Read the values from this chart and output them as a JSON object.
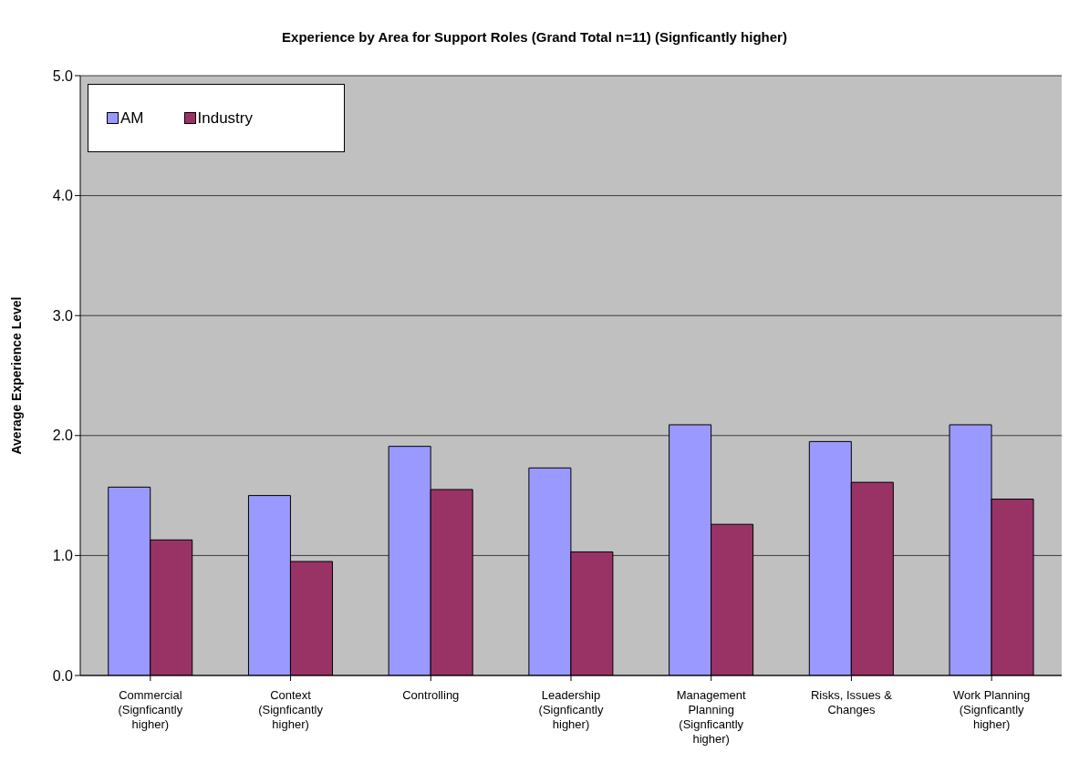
{
  "chart_data": {
    "type": "bar",
    "title": "Experience by Area for Support Roles (Grand Total n=11) (Signficantly higher)",
    "ylabel": "Average Experience Level",
    "categories": [
      "Commercial (Signficantly higher)",
      "Context (Signficantly higher)",
      "Controlling",
      "Leadership (Signficantly higher)",
      "Management Planning (Signficantly higher)",
      "Risks, Issues & Changes",
      "Work Planning (Signficantly higher)"
    ],
    "series": [
      {
        "name": "AM",
        "color": "#9999ff",
        "values": [
          1.57,
          1.5,
          1.91,
          1.73,
          2.09,
          1.95,
          2.09
        ]
      },
      {
        "name": "Industry",
        "color": "#993366",
        "values": [
          1.13,
          0.95,
          1.55,
          1.03,
          1.26,
          1.61,
          1.47
        ]
      }
    ],
    "ylim": [
      0,
      5
    ],
    "yticks": [
      {
        "value": 0,
        "label": "0.0"
      },
      {
        "value": 1,
        "label": "1.0"
      },
      {
        "value": 2,
        "label": "2.0"
      },
      {
        "value": 3,
        "label": "3.0"
      },
      {
        "value": 4,
        "label": "4.0"
      },
      {
        "value": 5,
        "label": "5.0"
      }
    ],
    "grid": "y",
    "legend": "top left"
  }
}
